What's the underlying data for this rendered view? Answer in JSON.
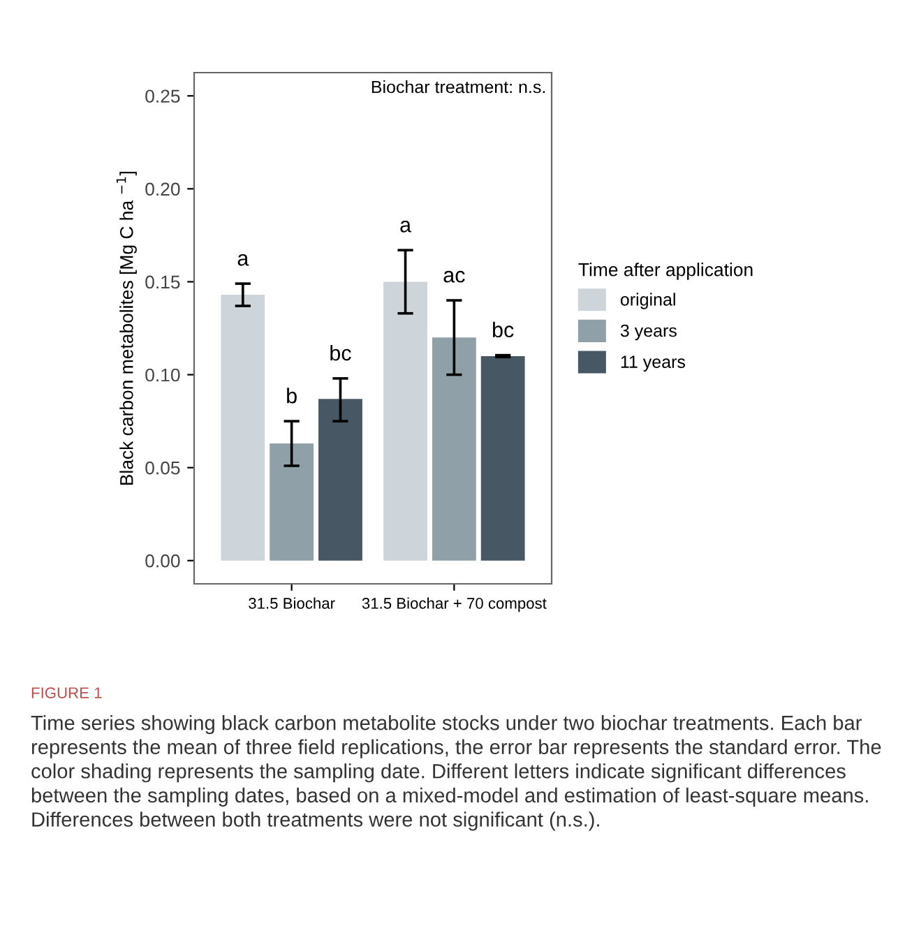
{
  "chart_data": {
    "type": "bar",
    "categories": [
      "31.5 Biochar",
      "31.5 Biochar + 70 compost"
    ],
    "series": [
      {
        "name": "original",
        "color": "#cdd5db",
        "values": [
          0.143,
          0.15
        ],
        "errors": [
          [
            0.137,
            0.149
          ],
          [
            0.133,
            0.167
          ]
        ],
        "value_labels": [
          "a",
          "a"
        ]
      },
      {
        "name": "3 years",
        "color": "#8fa0a9",
        "values": [
          0.063,
          0.12
        ],
        "errors": [
          [
            0.051,
            0.075
          ],
          [
            0.1,
            0.14
          ]
        ],
        "value_labels": [
          "b",
          "ac"
        ]
      },
      {
        "name": "11 years",
        "color": "#475763",
        "values": [
          0.087,
          0.11
        ],
        "errors": [
          [
            0.075,
            0.098
          ],
          [
            0.1095,
            0.1105
          ]
        ],
        "value_labels": [
          "bc",
          "bc"
        ]
      }
    ],
    "ylabel": "Black carbon metabolites [Mg C ha $^{−1}$]",
    "legend_title": "Time after application",
    "legend": "right",
    "ylim": [
      -0.0125,
      0.2625
    ],
    "yticks": [
      {
        "value": 0,
        "label": "0.00"
      },
      0.05,
      {
        "value": 0.1,
        "label": "0.10"
      },
      0.15,
      {
        "value": 0.2,
        "label": "0.20"
      },
      0.25
    ],
    "grid": false,
    "annotations": [
      "Biochar treatment: n.s.",
      "FIGURE 1",
      "Time series showing black carbon metabolite stocks under two biochar treatments. Each bar represents the mean of three field replications, the error bar represents the standard error. The color shading represents the sampling date. Different letters indicate significant differences between the sampling dates, based on a mixed-model and estimation of least-square means. Differences between both treatments were not significant (n.s.)."
    ]
  }
}
